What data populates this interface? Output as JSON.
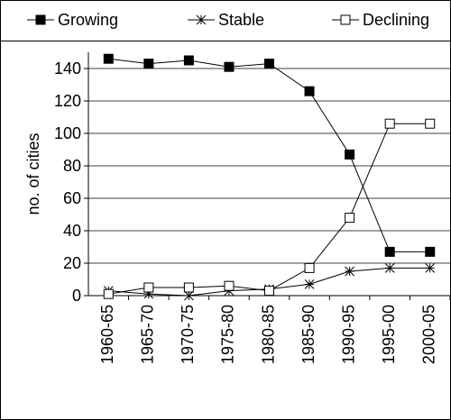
{
  "chart_data": {
    "type": "line",
    "y_label": "no. of cities",
    "categories": [
      "1960-65",
      "1965-70",
      "1970-75",
      "1975-80",
      "1980-85",
      "1985-90",
      "1990-95",
      "1995-00",
      "2000-05"
    ],
    "series": [
      {
        "name": "Growing",
        "color": "#000000",
        "marker": "filled-square",
        "values": [
          146,
          143,
          145,
          141,
          143,
          126,
          87,
          27,
          27
        ]
      },
      {
        "name": "Stable",
        "color": "#000000",
        "marker": "star",
        "values": [
          3,
          1,
          0,
          3,
          4,
          7,
          15,
          17,
          17
        ]
      },
      {
        "name": "Declining",
        "color": "#000000",
        "marker": "open-square",
        "values": [
          1,
          5,
          5,
          6,
          3,
          17,
          48,
          106,
          106
        ]
      }
    ],
    "ylim": [
      0,
      150
    ],
    "yticks": [
      0,
      20,
      40,
      60,
      80,
      100,
      120,
      140
    ],
    "grid": true,
    "legend": "top"
  }
}
